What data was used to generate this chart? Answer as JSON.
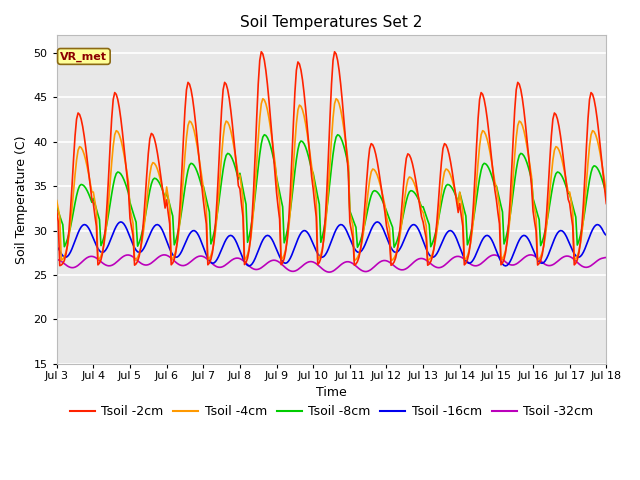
{
  "title": "Soil Temperatures Set 2",
  "xlabel": "Time",
  "ylabel": "Soil Temperature (C)",
  "ylim": [
    15,
    52
  ],
  "yticks": [
    15,
    20,
    25,
    30,
    35,
    40,
    45,
    50
  ],
  "xlim_days": [
    3,
    18
  ],
  "xtick_days": [
    3,
    4,
    5,
    6,
    7,
    8,
    9,
    10,
    11,
    12,
    13,
    14,
    15,
    16,
    17,
    18
  ],
  "xtick_labels": [
    "Jul 3",
    "Jul 4",
    "Jul 5",
    "Jul 6",
    "Jul 7",
    "Jul 8",
    "Jul 9",
    "Jul 10",
    "Jul 11",
    "Jul 12",
    "Jul 13",
    "Jul 14",
    "Jul 15",
    "Jul 16",
    "Jul 17",
    "Jul 18"
  ],
  "colors": {
    "T2cm": "#FF2200",
    "T4cm": "#FF9900",
    "T8cm": "#00CC00",
    "T16cm": "#0000EE",
    "T32cm": "#BB00BB"
  },
  "lw": 1.2,
  "annotation_text": "VR_met",
  "plot_bg": "#E8E8E8",
  "fig_bg": "#FFFFFF",
  "grid_color": "#FFFFFF",
  "title_fontsize": 11,
  "label_fontsize": 9,
  "tick_fontsize": 8,
  "legend_fontsize": 9
}
